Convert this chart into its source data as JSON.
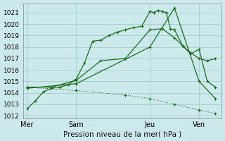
{
  "bg_color": "#cceaec",
  "grid_color": "#aad4d6",
  "line_color": "#1a6e1a",
  "ylim": [
    1011.8,
    1021.8
  ],
  "yticks": [
    1012,
    1013,
    1014,
    1015,
    1016,
    1017,
    1018,
    1019,
    1020,
    1021
  ],
  "xlabel": "Pression niveau de la mer( hPa )",
  "day_labels": [
    "Mer",
    "Sam",
    "Jeu",
    "Ven"
  ],
  "day_positions": [
    0,
    24,
    60,
    84
  ],
  "xlim": [
    -2,
    95
  ],
  "series": [
    {
      "x": [
        0,
        4,
        8,
        12,
        16,
        20,
        24,
        28,
        32,
        36,
        40,
        44,
        48,
        52,
        56,
        60,
        62,
        64,
        66,
        68,
        70,
        72,
        76,
        80,
        84,
        88,
        92
      ],
      "y": [
        1012.6,
        1013.3,
        1014.1,
        1014.4,
        1014.5,
        1014.7,
        1015.2,
        1016.6,
        1018.5,
        1018.6,
        1019.0,
        1019.3,
        1019.5,
        1019.7,
        1019.8,
        1021.1,
        1021.0,
        1021.2,
        1021.1,
        1021.0,
        1019.6,
        1019.5,
        1018.1,
        1017.5,
        1017.0,
        1016.8,
        1017.0
      ],
      "linestyle": "solid",
      "marker": "+"
    },
    {
      "x": [
        0,
        12,
        24,
        36,
        48,
        60,
        66,
        72,
        76,
        80,
        84,
        88,
        92
      ],
      "y": [
        1014.5,
        1014.5,
        1015.1,
        1016.8,
        1017.0,
        1019.5,
        1019.6,
        1018.8,
        1018.1,
        1017.4,
        1017.8,
        1015.0,
        1014.5
      ],
      "linestyle": "solid",
      "marker": "+"
    },
    {
      "x": [
        0,
        24,
        60,
        72,
        84,
        92
      ],
      "y": [
        1014.4,
        1014.8,
        1018.0,
        1021.4,
        1015.0,
        1013.5
      ],
      "linestyle": "solid",
      "marker": "+"
    },
    {
      "x": [
        0,
        24,
        48,
        60,
        72,
        84,
        92
      ],
      "y": [
        1014.5,
        1014.2,
        1013.8,
        1013.5,
        1013.0,
        1012.5,
        1012.2
      ],
      "linestyle": "dotted",
      "marker": "+"
    }
  ]
}
